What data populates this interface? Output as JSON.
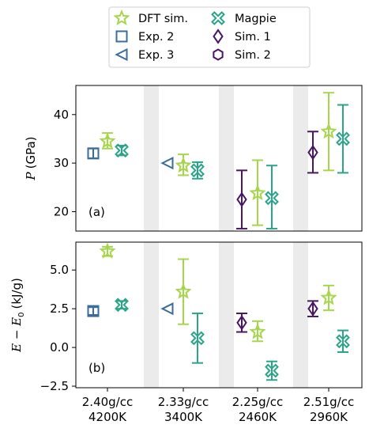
{
  "chart_data": [
    {
      "type": "scatter",
      "panel_label": "(a)",
      "ylabel": "P (GPa)",
      "ylabel_var": "P",
      "ylabel_unit": "(GPa)",
      "yticks": [
        20,
        30,
        40
      ],
      "ylim": [
        16,
        46
      ],
      "series": [
        {
          "name": "DFT sim.",
          "values": [
            [
              0,
              34.5,
              33.0,
              36.2
            ],
            [
              1,
              29.5,
              27.5,
              31.8
            ],
            [
              2,
              23.8,
              17.2,
              30.6
            ],
            [
              3,
              36.5,
              28.5,
              44.5
            ]
          ]
        },
        {
          "name": "Exp. 2",
          "values": [
            [
              0,
              32.0,
              31.0,
              33.0
            ]
          ]
        },
        {
          "name": "Exp. 3",
          "values": [
            [
              1,
              30.0,
              null,
              null
            ]
          ]
        },
        {
          "name": "Magpie",
          "values": [
            [
              0,
              32.6,
              31.6,
              33.6
            ],
            [
              1,
              28.5,
              26.8,
              30.2
            ],
            [
              2,
              22.8,
              16.5,
              29.5
            ],
            [
              3,
              35.0,
              28.0,
              42.0
            ]
          ]
        },
        {
          "name": "Sim. 1",
          "values": [
            [
              2,
              22.5,
              16.5,
              28.5
            ],
            [
              3,
              32.2,
              28.0,
              36.5
            ]
          ]
        },
        {
          "name": "Sim. 2",
          "values": []
        }
      ]
    },
    {
      "type": "scatter",
      "panel_label": "(b)",
      "ylabel": "E − E0 (kJ/g)",
      "ylabel_var": "E − E",
      "ylabel_sub": "0",
      "ylabel_unit": "(kJ/g)",
      "yticks": [
        -2.5,
        0.0,
        2.5,
        5.0
      ],
      "ytick_labels": [
        "−2.5",
        "0.0",
        "2.5",
        "5.0"
      ],
      "ylim": [
        -2.6,
        6.8
      ],
      "series": [
        {
          "name": "DFT sim.",
          "values": [
            [
              0,
              6.2,
              5.9,
              6.5
            ],
            [
              1,
              3.6,
              1.5,
              5.7
            ],
            [
              2,
              1.0,
              0.4,
              1.7
            ],
            [
              3,
              3.2,
              2.4,
              4.0
            ]
          ]
        },
        {
          "name": "Exp. 2",
          "values": [
            [
              0,
              2.35,
              2.1,
              2.6
            ]
          ]
        },
        {
          "name": "Exp. 3",
          "values": [
            [
              1,
              2.5,
              null,
              null
            ]
          ]
        },
        {
          "name": "Magpie",
          "values": [
            [
              0,
              2.75,
              2.5,
              3.0
            ],
            [
              1,
              0.6,
              -1.0,
              2.2
            ],
            [
              2,
              -1.5,
              -2.1,
              -0.9
            ],
            [
              3,
              0.4,
              -0.3,
              1.1
            ]
          ]
        },
        {
          "name": "Sim. 1",
          "values": [
            [
              2,
              1.6,
              1.0,
              2.2
            ],
            [
              3,
              2.5,
              2.0,
              3.0
            ]
          ]
        },
        {
          "name": "Sim. 2",
          "values": []
        }
      ]
    }
  ],
  "x_categories": [
    {
      "line1": "2.40g/cc",
      "line2": "4200K"
    },
    {
      "line1": "2.33g/cc",
      "line2": "3400K"
    },
    {
      "line1": "2.25g/cc",
      "line2": "2460K"
    },
    {
      "line1": "2.51g/cc",
      "line2": "2960K"
    }
  ],
  "legend": {
    "placement": "top-center",
    "entries": [
      {
        "label": "DFT sim.",
        "marker": "star",
        "color": "#a5d64b"
      },
      {
        "label": "Exp. 2",
        "marker": "square",
        "color": "#3b6d9c"
      },
      {
        "label": "Exp. 3",
        "marker": "triangle-left",
        "color": "#3b6d9c"
      },
      {
        "label": "Magpie",
        "marker": "x-filled",
        "color": "#2aa48a"
      },
      {
        "label": "Sim. 1",
        "marker": "diamond",
        "color": "#4b1565"
      },
      {
        "label": "Sim. 2",
        "marker": "hexagon",
        "color": "#4b1565"
      }
    ]
  },
  "colors": {
    "DFT sim.": "#a5d64b",
    "Exp. 2": "#3b6d9c",
    "Exp. 3": "#3b6d9c",
    "Magpie": "#2aa48a",
    "Sim. 1": "#4b1565",
    "Sim. 2": "#4b1565",
    "separator": "#ebebeb"
  }
}
